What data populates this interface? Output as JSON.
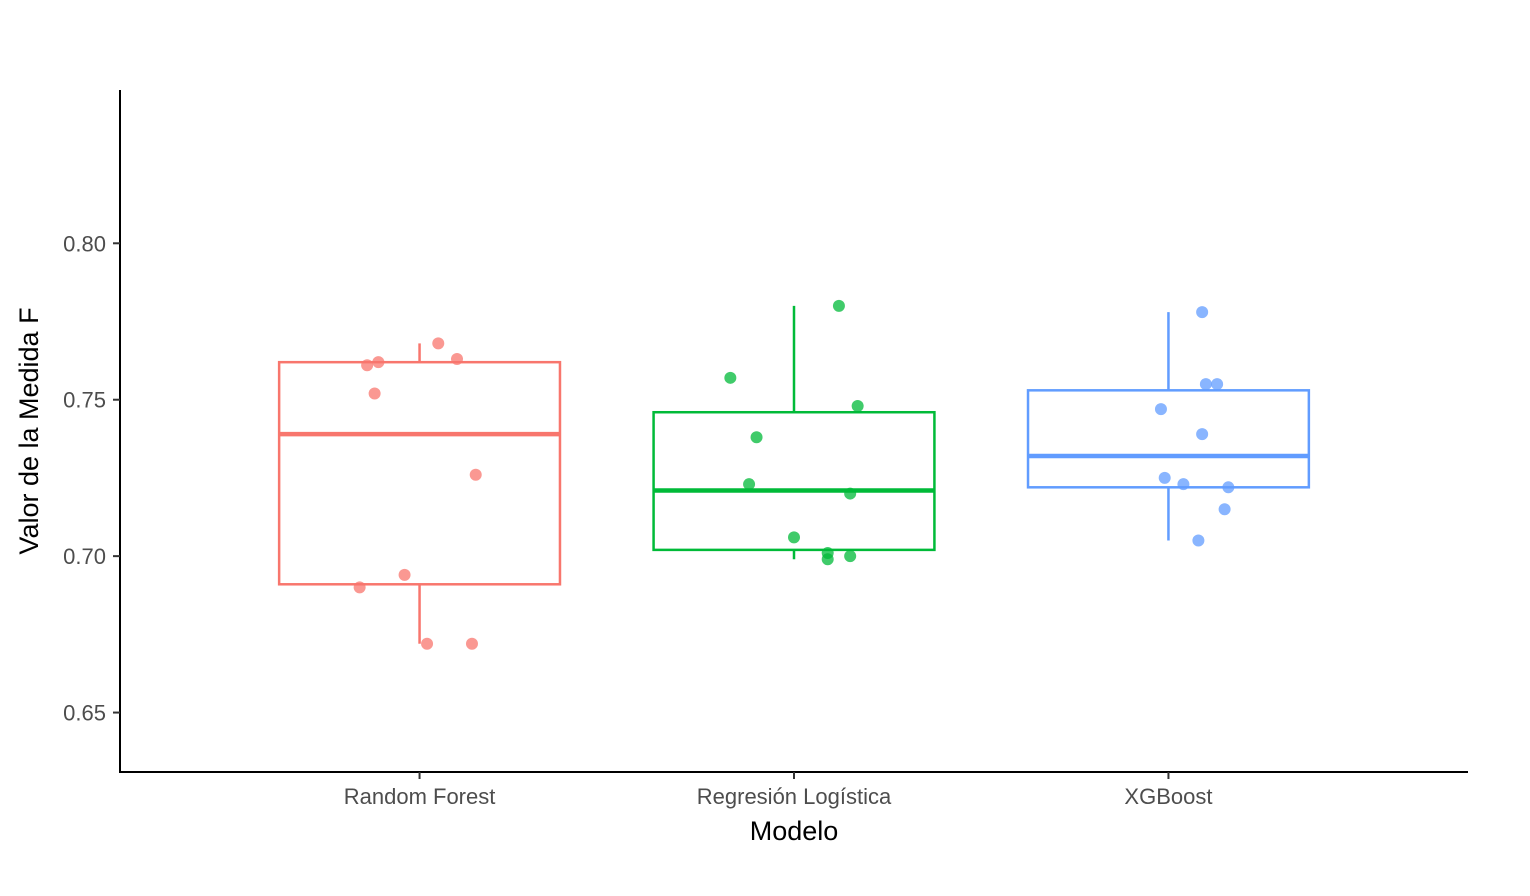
{
  "chart_data": {
    "type": "box",
    "title": "",
    "xlabel": "Modelo",
    "ylabel": "Valor de la Medida F",
    "ylim": [
      0.631,
      0.849
    ],
    "y_ticks": [
      {
        "value": 0.65,
        "label": "0.65"
      },
      {
        "value": 0.7,
        "label": "0.70"
      },
      {
        "value": 0.75,
        "label": "0.75"
      },
      {
        "value": 0.8,
        "label": "0.80"
      }
    ],
    "categories": [
      "Random Forest",
      "Regresión Logística",
      "XGBoost"
    ],
    "grid": false,
    "legend": "none",
    "boxes": [
      {
        "category": "Random Forest",
        "color": "#F8766D",
        "whisker_low": 0.672,
        "q1": 0.691,
        "median": 0.739,
        "q3": 0.762,
        "whisker_high": 0.768,
        "points": [
          0.768,
          0.763,
          0.762,
          0.761,
          0.752,
          0.726,
          0.694,
          0.69,
          0.672,
          0.672
        ],
        "jitter": [
          0.05,
          0.1,
          -0.11,
          -0.14,
          -0.12,
          0.15,
          -0.04,
          -0.16,
          0.02,
          0.14
        ]
      },
      {
        "category": "Regresión Logística",
        "color": "#00BA38",
        "whisker_low": 0.699,
        "q1": 0.702,
        "median": 0.721,
        "q3": 0.746,
        "whisker_high": 0.78,
        "points": [
          0.78,
          0.757,
          0.748,
          0.738,
          0.723,
          0.72,
          0.706,
          0.701,
          0.7,
          0.699
        ],
        "jitter": [
          0.12,
          -0.17,
          0.17,
          -0.1,
          -0.12,
          0.15,
          0.0,
          0.09,
          0.15,
          0.09
        ]
      },
      {
        "category": "XGBoost",
        "color": "#619CFF",
        "whisker_low": 0.705,
        "q1": 0.722,
        "median": 0.732,
        "q3": 0.753,
        "whisker_high": 0.778,
        "points": [
          0.778,
          0.755,
          0.755,
          0.747,
          0.739,
          0.725,
          0.723,
          0.722,
          0.715,
          0.705
        ],
        "jitter": [
          0.09,
          0.1,
          0.13,
          -0.02,
          0.09,
          -0.01,
          0.04,
          0.16,
          0.15,
          0.08
        ]
      }
    ]
  }
}
